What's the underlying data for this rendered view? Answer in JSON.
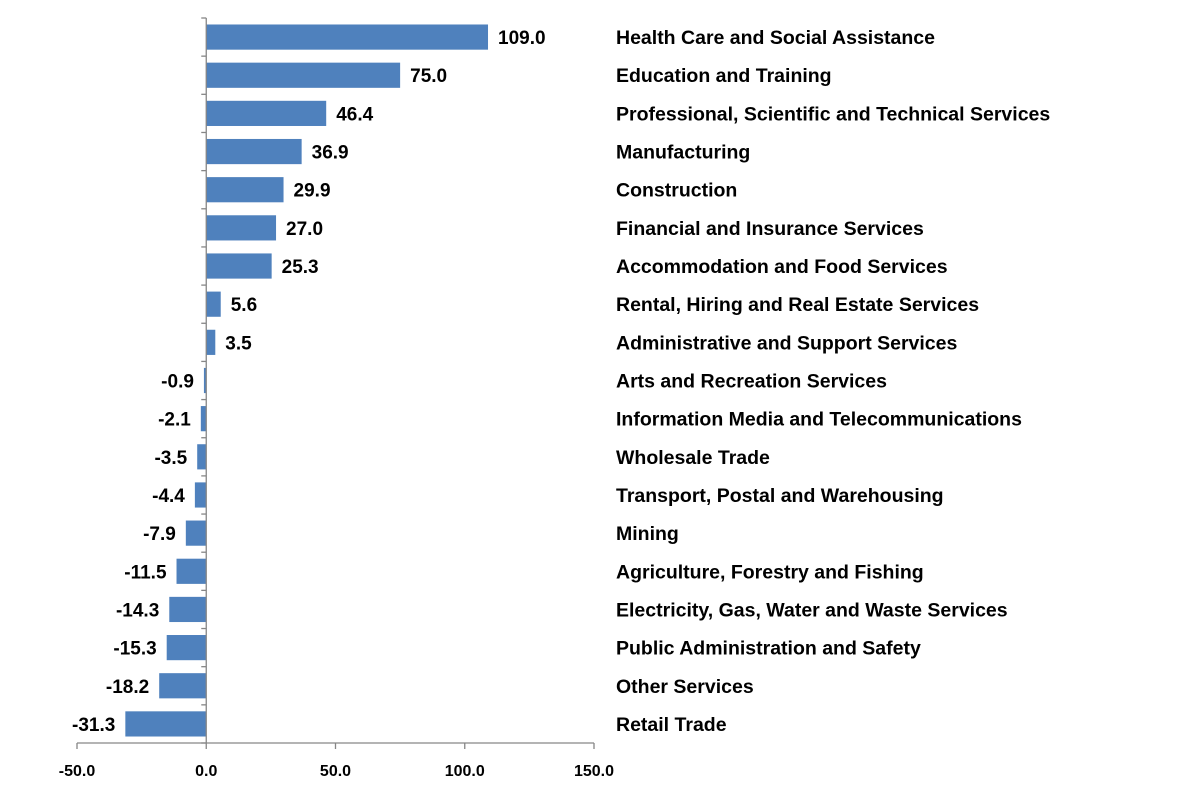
{
  "chart_data": {
    "type": "bar",
    "orientation": "horizontal",
    "categories": [
      "Health Care and Social Assistance",
      "Education and Training",
      "Professional, Scientific and Technical Services",
      "Manufacturing",
      "Construction",
      "Financial and Insurance Services",
      "Accommodation and Food Services",
      "Rental, Hiring and Real Estate Services",
      "Administrative and Support Services",
      "Arts and Recreation Services",
      "Information Media and Telecommunications",
      "Wholesale Trade",
      "Transport, Postal and Warehousing",
      "Mining",
      "Agriculture, Forestry and Fishing",
      "Electricity, Gas, Water and Waste Services",
      "Public Administration and Safety",
      "Other Services",
      "Retail Trade"
    ],
    "values": [
      109.0,
      75.0,
      46.4,
      36.9,
      29.9,
      27.0,
      25.3,
      5.6,
      3.5,
      -0.9,
      -2.1,
      -3.5,
      -4.4,
      -7.9,
      -11.5,
      -14.3,
      -15.3,
      -18.2,
      -31.3
    ],
    "value_labels": [
      "109.0",
      "75.0",
      "46.4",
      "36.9",
      "29.9",
      "27.0",
      "25.3",
      "5.6",
      "3.5",
      "-0.9",
      "-2.1",
      "-3.5",
      "-4.4",
      "-7.9",
      "-11.5",
      "-14.3",
      "-15.3",
      "-18.2",
      "-31.3"
    ],
    "xlim": [
      -50,
      150
    ],
    "x_ticks": [
      -50,
      0,
      50,
      100,
      150
    ],
    "x_tick_labels": [
      "-50.0",
      "0.0",
      "50.0",
      "100.0",
      "150.0"
    ],
    "title": "",
    "xlabel": "",
    "ylabel": "",
    "grid": false,
    "legend": "none",
    "bar_color": "#4f81bd",
    "axis_color": "#868686"
  }
}
